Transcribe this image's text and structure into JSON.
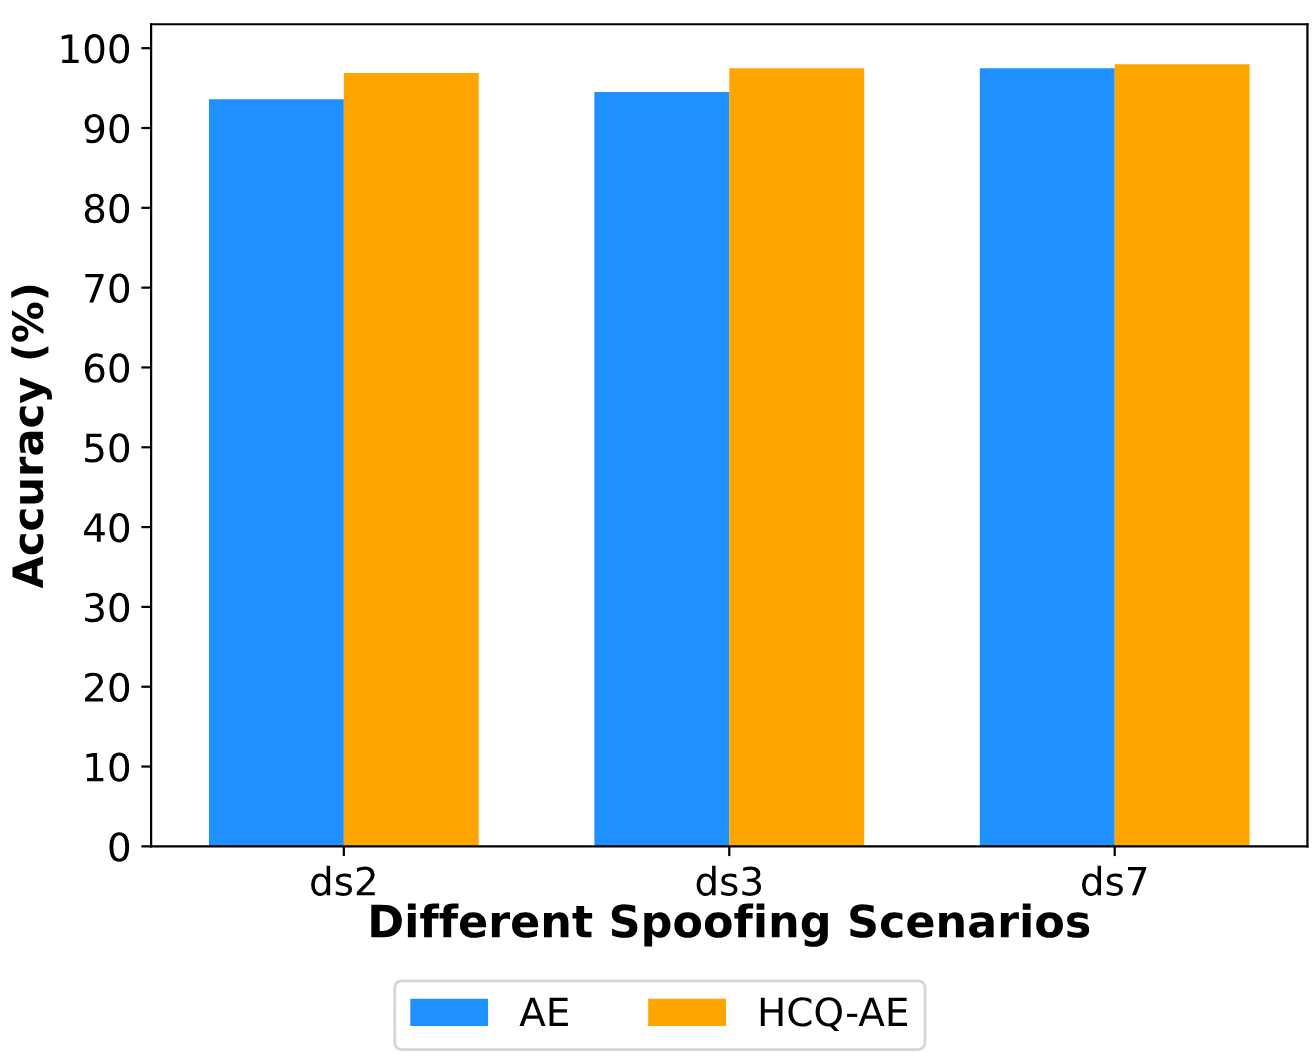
{
  "chart_data": {
    "type": "bar",
    "xlabel": "Different Spoofing Scenarios",
    "ylabel": "Accuracy (%)",
    "categories": [
      "ds2",
      "ds3",
      "ds7"
    ],
    "series": [
      {
        "name": "AE",
        "color": "#1e90ff",
        "values": [
          93.6,
          94.5,
          97.5
        ]
      },
      {
        "name": "HCQ-AE",
        "color": "#ffa500",
        "values": [
          96.9,
          97.5,
          98.0
        ]
      }
    ],
    "ylim": [
      0,
      103
    ],
    "yticks": [
      0,
      10,
      20,
      30,
      40,
      50,
      60,
      70,
      80,
      90,
      100
    ],
    "grid": false,
    "legend": "bottom"
  }
}
